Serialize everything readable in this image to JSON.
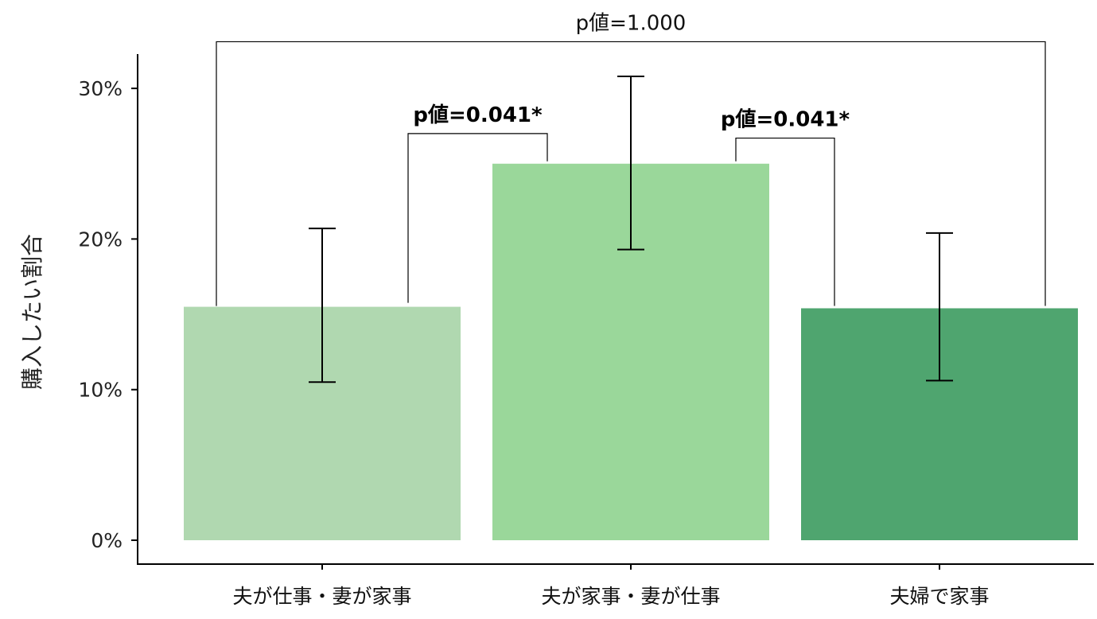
{
  "chart_data": {
    "type": "bar",
    "ylabel": "購入したい割合",
    "ylim": [
      0,
      33
    ],
    "yticks": [
      {
        "value": 0,
        "label": "0%"
      },
      {
        "value": 10,
        "label": "10%"
      },
      {
        "value": 20,
        "label": "20%"
      },
      {
        "value": 30,
        "label": "30%"
      }
    ],
    "categories": [
      "夫が仕事・妻が家事",
      "夫が家事・妻が仕事",
      "夫婦で家事"
    ],
    "values": [
      15.5,
      25.0,
      15.4
    ],
    "error_low": [
      10.5,
      19.3,
      10.6
    ],
    "error_high": [
      20.7,
      30.8,
      20.4
    ],
    "colors": [
      "#b0d8b0",
      "#9ad79a",
      "#4fa56f"
    ],
    "grid": false,
    "legend": "none",
    "comparisons": [
      {
        "from": 0,
        "to": 1,
        "label": "p値=0.041*",
        "bold": true,
        "bracket_y": 27.0
      },
      {
        "from": 1,
        "to": 2,
        "label": "p値=0.041*",
        "bold": true,
        "bracket_y": 26.7
      },
      {
        "from": 0,
        "to": 2,
        "label": "p値=1.000",
        "bold": false,
        "bracket_y": 33.1
      }
    ]
  }
}
